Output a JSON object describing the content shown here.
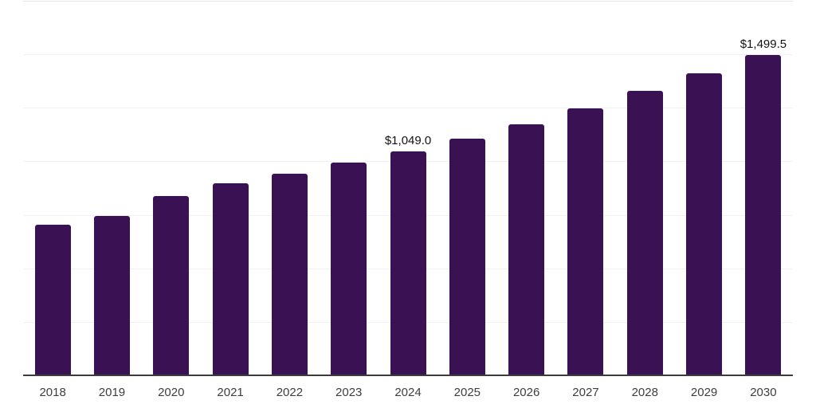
{
  "chart_data": {
    "type": "bar",
    "title": "",
    "xlabel": "",
    "ylabel": "",
    "categories": [
      "2018",
      "2019",
      "2020",
      "2021",
      "2022",
      "2023",
      "2024",
      "2025",
      "2026",
      "2027",
      "2028",
      "2029",
      "2030"
    ],
    "values": [
      706,
      748,
      843,
      900,
      945,
      997,
      1049.0,
      1109,
      1178,
      1250,
      1332,
      1416,
      1499.5
    ],
    "data_labels": [
      {
        "category": "2024",
        "text": "$1,049.0"
      },
      {
        "category": "2030",
        "text": "$1,499.5"
      }
    ],
    "ylim": [
      0,
      1750
    ],
    "grid": true,
    "grid_step": 250,
    "y_axis_tick_labels_visible": false,
    "legend": false,
    "colors": {
      "background": "#ffffff",
      "bar": "#3a1254",
      "gridline": "#f1f1f1",
      "top_gridline": "#e7e7e7",
      "axis_line": "#3c3c3c",
      "tick_label": "#3e3e3e",
      "data_label": "#121212"
    }
  }
}
